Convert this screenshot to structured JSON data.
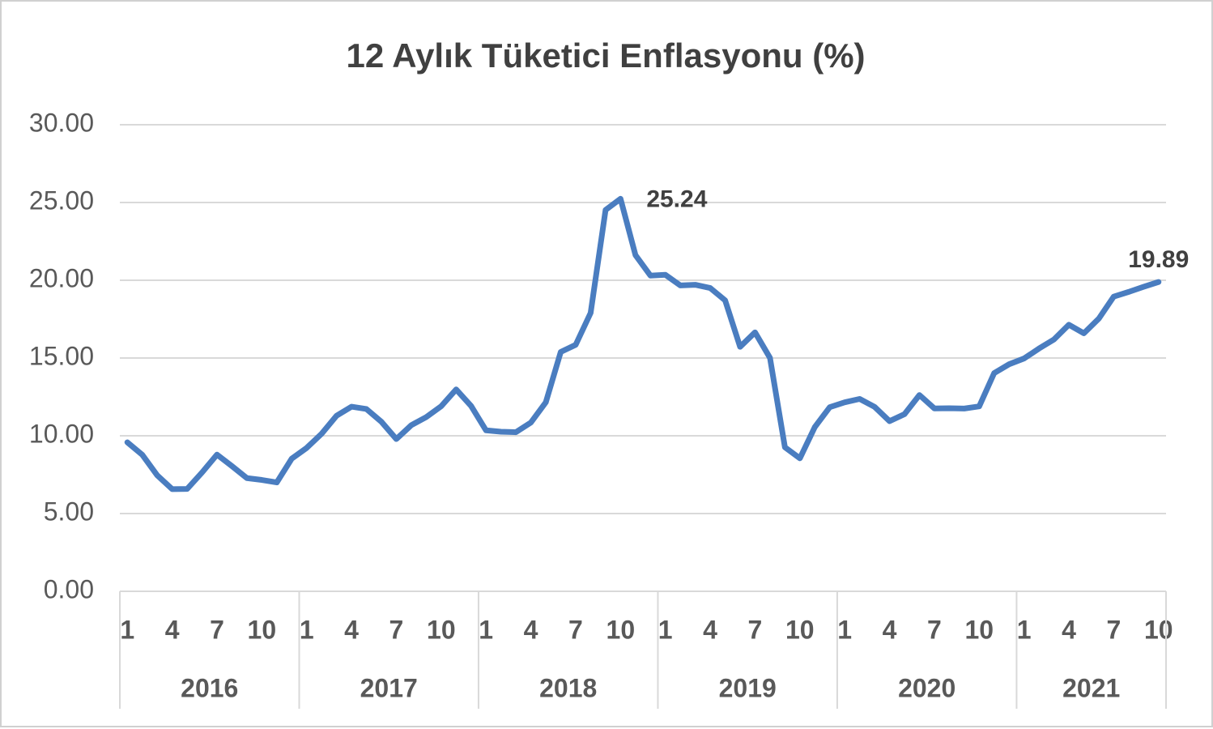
{
  "chart_data": {
    "type": "line",
    "title": "12 Aylık Tüketici Enflasyonu (%)",
    "categories": [
      "1",
      null,
      null,
      "4",
      null,
      null,
      "7",
      null,
      null,
      "10",
      null,
      null,
      "1",
      null,
      null,
      "4",
      null,
      null,
      "7",
      null,
      null,
      "10",
      null,
      null,
      "1",
      null,
      null,
      "4",
      null,
      null,
      "7",
      null,
      null,
      "10",
      null,
      null,
      "1",
      null,
      null,
      "4",
      null,
      null,
      "7",
      null,
      null,
      "10",
      null,
      null,
      "1",
      null,
      null,
      "4",
      null,
      null,
      "7",
      null,
      null,
      "10",
      null,
      null,
      "1",
      null,
      null,
      "4",
      null,
      null,
      "7",
      null,
      null,
      "10"
    ],
    "groups": [
      "2016",
      "2017",
      "2018",
      "2019",
      "2020",
      "2021"
    ],
    "values": [
      9.58,
      8.78,
      7.46,
      6.57,
      6.58,
      7.64,
      8.79,
      8.05,
      7.28,
      7.16,
      7.0,
      8.53,
      9.22,
      10.13,
      11.29,
      11.87,
      11.72,
      10.9,
      9.79,
      10.68,
      11.2,
      11.9,
      12.98,
      11.92,
      10.35,
      10.26,
      10.23,
      10.85,
      12.15,
      15.39,
      15.85,
      17.9,
      24.52,
      25.24,
      21.62,
      20.3,
      20.35,
      19.67,
      19.71,
      19.5,
      18.71,
      15.72,
      16.65,
      15.01,
      9.26,
      8.55,
      10.56,
      11.84,
      12.15,
      12.37,
      11.86,
      10.94,
      11.39,
      12.62,
      11.76,
      11.77,
      11.75,
      11.89,
      14.03,
      14.6,
      14.97,
      15.61,
      16.19,
      17.14,
      16.59,
      17.53,
      18.95,
      19.25,
      19.58,
      19.89
    ],
    "value_labels": [
      null,
      null,
      null,
      null,
      null,
      null,
      null,
      null,
      null,
      null,
      null,
      null,
      null,
      null,
      null,
      null,
      null,
      null,
      null,
      null,
      null,
      null,
      null,
      null,
      null,
      null,
      null,
      null,
      null,
      null,
      null,
      null,
      null,
      "25.24",
      null,
      null,
      null,
      null,
      null,
      null,
      null,
      null,
      null,
      null,
      null,
      null,
      null,
      null,
      null,
      null,
      null,
      null,
      null,
      null,
      null,
      null,
      null,
      null,
      null,
      null,
      null,
      null,
      null,
      null,
      null,
      null,
      null,
      null,
      null,
      "19.89"
    ],
    "color": "#4a7dc0",
    "ylim": [
      0,
      30
    ],
    "yticks": [
      {
        "value": 0,
        "label": "0.00"
      },
      {
        "value": 5,
        "label": "5.00"
      },
      {
        "value": 10,
        "label": "10.00"
      },
      {
        "value": 15,
        "label": "15.00"
      },
      {
        "value": 20,
        "label": "20.00"
      },
      {
        "value": 25,
        "label": "25.00"
      },
      {
        "value": 30,
        "label": "30.00"
      }
    ],
    "grid": true
  }
}
